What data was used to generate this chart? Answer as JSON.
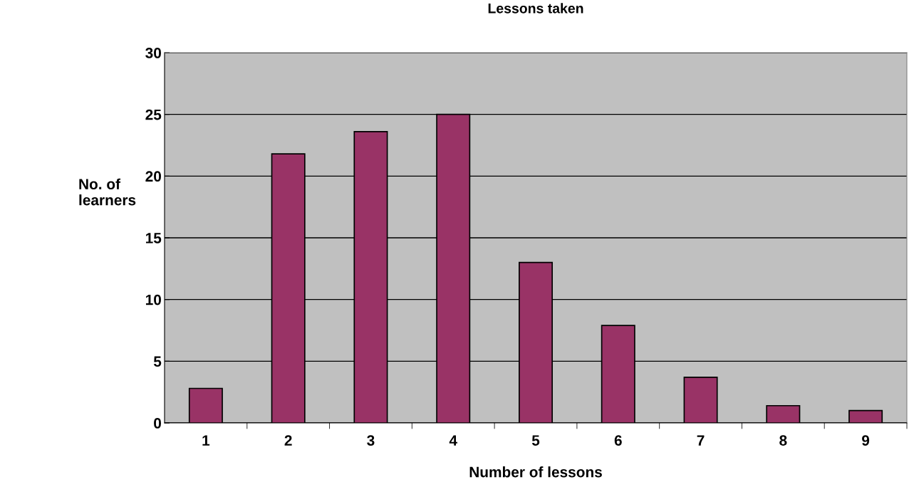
{
  "chart_data": {
    "type": "bar",
    "title": "Lessons taken",
    "xlabel": "Number of lessons",
    "ylabel": "No. of\nlearners",
    "categories": [
      "1",
      "2",
      "3",
      "4",
      "5",
      "6",
      "7",
      "8",
      "9"
    ],
    "values": [
      2.8,
      21.8,
      23.6,
      25,
      13,
      7.9,
      3.7,
      1.4,
      1
    ],
    "color": "#993366",
    "ylim": [
      0,
      30
    ],
    "yticks": [
      0,
      5,
      10,
      15,
      20,
      25,
      30
    ],
    "grid": "y",
    "legend": false
  }
}
